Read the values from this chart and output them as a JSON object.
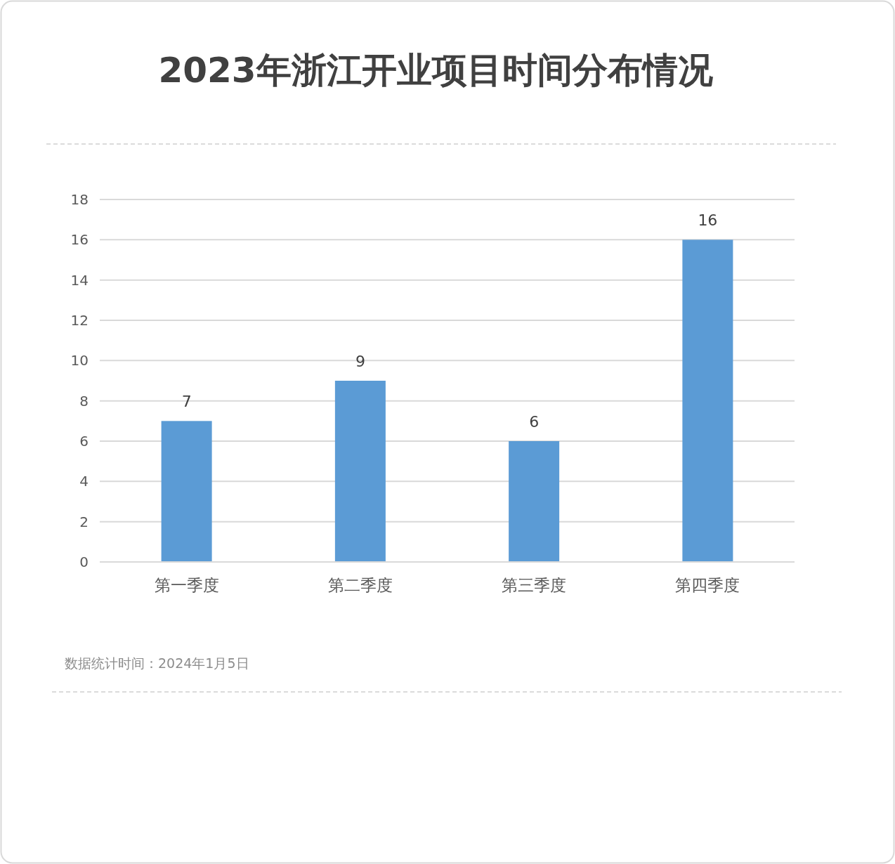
{
  "chart_data": {
    "type": "bar",
    "title": "2023年浙江开业项目时间分布情况",
    "categories": [
      "第一季度",
      "第二季度",
      "第三季度",
      "第四季度"
    ],
    "values": [
      7,
      9,
      6,
      16
    ],
    "color": "#5b9bd5",
    "ylim": [
      0,
      18
    ],
    "yticks": [
      0,
      2,
      4,
      6,
      8,
      10,
      12,
      14,
      16,
      18
    ],
    "grid": "y",
    "data_labels": true,
    "annotations": [
      "数据统计时间：2024年1月5日"
    ]
  }
}
